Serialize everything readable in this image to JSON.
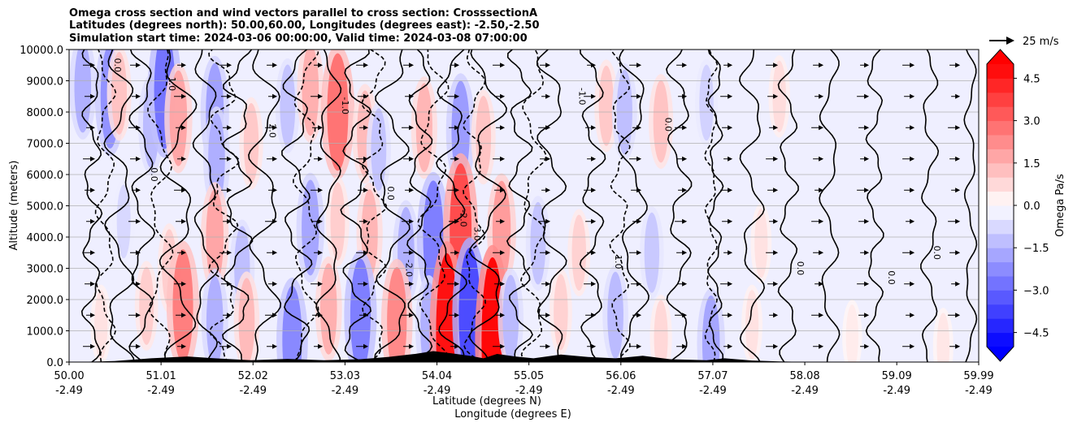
{
  "chart_data": {
    "type": "contour",
    "title_lines": [
      "Omega cross section and wind vectors parallel to cross section: CrosssectionA",
      "Latitudes (degrees north): 50.00,60.00, Longitudes (degrees east): -2.50,-2.50",
      "Simulation start time: 2024-03-06 00:00:00, Valid time: 2024-03-08 07:00:00"
    ],
    "ylabel": "Altitude (meters)",
    "xlabel": "Latitude (degrees N)",
    "xlabel2": "Longitude (degrees E)",
    "xlim": [
      50.0,
      59.99
    ],
    "ylim": [
      0,
      10000
    ],
    "yticks": [
      0,
      1000,
      2000,
      3000,
      4000,
      5000,
      6000,
      7000,
      8000,
      9000,
      10000
    ],
    "ytick_labels": [
      "0.0",
      "1000.0",
      "2000.0",
      "3000.0",
      "4000.0",
      "5000.0",
      "6000.0",
      "7000.0",
      "8000.0",
      "9000.0",
      "10000.0"
    ],
    "xticks": [
      50.0,
      51.01,
      52.02,
      53.03,
      54.04,
      55.05,
      56.06,
      57.07,
      58.08,
      59.09,
      59.99
    ],
    "xtick_lat_labels": [
      "50.00",
      "51.01",
      "52.02",
      "53.03",
      "54.04",
      "55.05",
      "56.06",
      "57.07",
      "58.08",
      "59.09",
      "59.99"
    ],
    "xtick_lon_labels": [
      "-2.49",
      "-2.49",
      "-2.49",
      "-2.49",
      "-2.49",
      "-2.49",
      "-2.49",
      "-2.49",
      "-2.49",
      "-2.49",
      "-2.49"
    ],
    "grid": "horizontal",
    "colorbar": {
      "label": "Omega Pa/s",
      "range": [
        -5.0,
        5.0
      ],
      "ticks": [
        -4.5,
        -3.0,
        -1.5,
        0.0,
        1.5,
        3.0,
        4.5
      ],
      "tick_labels": [
        "−4.5",
        "−3.0",
        "−1.5",
        "0.0",
        "1.5",
        "3.0",
        "4.5"
      ],
      "levels": 20,
      "cmap": "bwr",
      "extend": "both"
    },
    "quiver_key": {
      "value": 25,
      "label": "25 m/s"
    },
    "contour_labels": [
      "0.0",
      "1.0",
      "-1.0",
      "2.0",
      "-2.0",
      "3.0",
      "0.0",
      "0.0",
      "-1.0",
      "1.0",
      "0.0",
      "0.0",
      "-2.0",
      "0.0",
      "0.0"
    ],
    "cells": [
      {
        "lat": 50.15,
        "alt": 8800,
        "omega": -1.6
      },
      {
        "lat": 50.45,
        "alt": 8500,
        "omega": -2.2
      },
      {
        "lat": 50.55,
        "alt": 8600,
        "omega": 1.2
      },
      {
        "lat": 50.9,
        "alt": 7600,
        "omega": -1.4
      },
      {
        "lat": 51.05,
        "alt": 8700,
        "omega": -2.8
      },
      {
        "lat": 51.2,
        "alt": 7800,
        "omega": 1.8
      },
      {
        "lat": 51.6,
        "alt": 8000,
        "omega": -1.9
      },
      {
        "lat": 51.62,
        "alt": 6500,
        "omega": -1.6
      },
      {
        "lat": 52.0,
        "alt": 7000,
        "omega": 1.1
      },
      {
        "lat": 52.4,
        "alt": 8200,
        "omega": -1.2
      },
      {
        "lat": 52.65,
        "alt": 8700,
        "omega": 1.6
      },
      {
        "lat": 52.95,
        "alt": 8000,
        "omega": 2.8
      },
      {
        "lat": 53.25,
        "alt": 7300,
        "omega": 1.4
      },
      {
        "lat": 53.4,
        "alt": 6800,
        "omega": -1.2
      },
      {
        "lat": 53.9,
        "alt": 7500,
        "omega": 1.5
      },
      {
        "lat": 54.3,
        "alt": 7400,
        "omega": -2.0
      },
      {
        "lat": 54.55,
        "alt": 7200,
        "omega": 1.2
      },
      {
        "lat": 55.9,
        "alt": 8200,
        "omega": 1.1
      },
      {
        "lat": 56.1,
        "alt": 8000,
        "omega": -1.3
      },
      {
        "lat": 56.5,
        "alt": 7700,
        "omega": 1.2
      },
      {
        "lat": 57.0,
        "alt": 8300,
        "omega": -0.9
      },
      {
        "lat": 57.8,
        "alt": 8500,
        "omega": 0.7
      },
      {
        "lat": 50.6,
        "alt": 4500,
        "omega": -0.8
      },
      {
        "lat": 51.1,
        "alt": 3000,
        "omega": 1.0
      },
      {
        "lat": 51.6,
        "alt": 4000,
        "omega": 1.8
      },
      {
        "lat": 51.9,
        "alt": 3000,
        "omega": -1.3
      },
      {
        "lat": 52.65,
        "alt": 4300,
        "omega": -1.8
      },
      {
        "lat": 52.95,
        "alt": 4500,
        "omega": 1.0
      },
      {
        "lat": 53.3,
        "alt": 4100,
        "omega": 1.5
      },
      {
        "lat": 53.7,
        "alt": 3500,
        "omega": -1.6
      },
      {
        "lat": 54.0,
        "alt": 4000,
        "omega": -2.6
      },
      {
        "lat": 54.3,
        "alt": 4200,
        "omega": 3.6
      },
      {
        "lat": 54.75,
        "alt": 4200,
        "omega": 2.0
      },
      {
        "lat": 55.15,
        "alt": 3800,
        "omega": -1.2
      },
      {
        "lat": 55.6,
        "alt": 3500,
        "omega": 0.9
      },
      {
        "lat": 56.4,
        "alt": 3500,
        "omega": -1.1
      },
      {
        "lat": 57.6,
        "alt": 3800,
        "omega": 0.6
      },
      {
        "lat": 50.35,
        "alt": 1200,
        "omega": 0.6
      },
      {
        "lat": 50.85,
        "alt": 1800,
        "omega": 1.0
      },
      {
        "lat": 51.25,
        "alt": 1800,
        "omega": 2.6
      },
      {
        "lat": 51.6,
        "alt": 1300,
        "omega": -1.6
      },
      {
        "lat": 51.95,
        "alt": 1300,
        "omega": 1.4
      },
      {
        "lat": 52.45,
        "alt": 700,
        "omega": -2.4
      },
      {
        "lat": 52.85,
        "alt": 1700,
        "omega": 1.6
      },
      {
        "lat": 53.2,
        "alt": 1500,
        "omega": -2.6
      },
      {
        "lat": 53.6,
        "alt": 1300,
        "omega": 2.4
      },
      {
        "lat": 53.95,
        "alt": 1100,
        "omega": -1.6
      },
      {
        "lat": 54.15,
        "alt": 900,
        "omega": 4.8
      },
      {
        "lat": 54.4,
        "alt": 1500,
        "omega": -3.6
      },
      {
        "lat": 54.65,
        "alt": 700,
        "omega": 5.0
      },
      {
        "lat": 54.85,
        "alt": 1400,
        "omega": -1.4
      },
      {
        "lat": 55.4,
        "alt": 1600,
        "omega": 0.9
      },
      {
        "lat": 56.0,
        "alt": 1500,
        "omega": -1.4
      },
      {
        "lat": 56.5,
        "alt": 800,
        "omega": 0.8
      },
      {
        "lat": 57.05,
        "alt": 600,
        "omega": -1.8
      },
      {
        "lat": 57.5,
        "alt": 1200,
        "omega": 0.6
      },
      {
        "lat": 58.6,
        "alt": 800,
        "omega": 0.4
      },
      {
        "lat": 59.6,
        "alt": 500,
        "omega": 0.5
      }
    ],
    "solid_contours": [
      {
        "lat": 50.25,
        "amp": 0.08,
        "wave": 3.0
      },
      {
        "lat": 50.55,
        "amp": 0.12,
        "wave": 2.2
      },
      {
        "lat": 50.8,
        "amp": 0.1,
        "wave": 2.6
      },
      {
        "lat": 51.2,
        "amp": 0.15,
        "wave": 1.9
      },
      {
        "lat": 51.5,
        "amp": 0.1,
        "wave": 2.4
      },
      {
        "lat": 51.85,
        "amp": 0.12,
        "wave": 3.1
      },
      {
        "lat": 52.15,
        "amp": 0.13,
        "wave": 2.0
      },
      {
        "lat": 52.5,
        "amp": 0.12,
        "wave": 2.7
      },
      {
        "lat": 52.85,
        "amp": 0.1,
        "wave": 2.2
      },
      {
        "lat": 53.15,
        "amp": 0.12,
        "wave": 3.0
      },
      {
        "lat": 53.55,
        "amp": 0.14,
        "wave": 2.3
      },
      {
        "lat": 53.85,
        "amp": 0.1,
        "wave": 2.9
      },
      {
        "lat": 54.2,
        "amp": 0.12,
        "wave": 2.5
      },
      {
        "lat": 54.6,
        "amp": 0.15,
        "wave": 2.1
      },
      {
        "lat": 54.95,
        "amp": 0.1,
        "wave": 3.2
      },
      {
        "lat": 55.3,
        "amp": 0.12,
        "wave": 2.4
      },
      {
        "lat": 55.75,
        "amp": 0.1,
        "wave": 2.8
      },
      {
        "lat": 56.2,
        "amp": 0.12,
        "wave": 2.0
      },
      {
        "lat": 56.7,
        "amp": 0.1,
        "wave": 2.6
      },
      {
        "lat": 57.1,
        "amp": 0.06,
        "wave": 3.5
      },
      {
        "lat": 57.5,
        "amp": 0.1,
        "wave": 2.3
      },
      {
        "lat": 57.9,
        "amp": 0.08,
        "wave": 2.9
      },
      {
        "lat": 58.35,
        "amp": 0.08,
        "wave": 2.2
      },
      {
        "lat": 58.85,
        "amp": 0.07,
        "wave": 3.1
      },
      {
        "lat": 59.45,
        "amp": 0.07,
        "wave": 2.6
      },
      {
        "lat": 59.9,
        "amp": 0.05,
        "wave": 2.4
      }
    ],
    "dashed_contours": [
      {
        "lat": 50.4,
        "amp": 0.08,
        "wave": 2.5
      },
      {
        "lat": 51.0,
        "amp": 0.1,
        "wave": 2.1
      },
      {
        "lat": 51.7,
        "amp": 0.12,
        "wave": 2.8
      },
      {
        "lat": 52.6,
        "amp": 0.1,
        "wave": 2.3
      },
      {
        "lat": 53.35,
        "amp": 0.1,
        "wave": 2.9
      },
      {
        "lat": 54.0,
        "amp": 0.12,
        "wave": 2.2
      },
      {
        "lat": 54.45,
        "amp": 0.09,
        "wave": 2.7
      },
      {
        "lat": 55.1,
        "amp": 0.1,
        "wave": 2.4
      },
      {
        "lat": 56.05,
        "amp": 0.08,
        "wave": 3.0
      },
      {
        "lat": 57.05,
        "amp": 0.05,
        "wave": 3.3
      }
    ],
    "terrain": [
      {
        "lat": 50.0,
        "alt": 0
      },
      {
        "lat": 50.5,
        "alt": 30
      },
      {
        "lat": 50.9,
        "alt": 120
      },
      {
        "lat": 51.3,
        "alt": 180
      },
      {
        "lat": 51.6,
        "alt": 120
      },
      {
        "lat": 52.0,
        "alt": 60
      },
      {
        "lat": 52.4,
        "alt": 100
      },
      {
        "lat": 52.8,
        "alt": 60
      },
      {
        "lat": 53.2,
        "alt": 90
      },
      {
        "lat": 53.5,
        "alt": 160
      },
      {
        "lat": 53.8,
        "alt": 260
      },
      {
        "lat": 54.0,
        "alt": 350
      },
      {
        "lat": 54.2,
        "alt": 280
      },
      {
        "lat": 54.4,
        "alt": 200
      },
      {
        "lat": 54.55,
        "alt": 120
      },
      {
        "lat": 54.7,
        "alt": 260
      },
      {
        "lat": 54.9,
        "alt": 180
      },
      {
        "lat": 55.1,
        "alt": 120
      },
      {
        "lat": 55.4,
        "alt": 240
      },
      {
        "lat": 55.7,
        "alt": 160
      },
      {
        "lat": 56.0,
        "alt": 120
      },
      {
        "lat": 56.3,
        "alt": 200
      },
      {
        "lat": 56.6,
        "alt": 90
      },
      {
        "lat": 57.0,
        "alt": 60
      },
      {
        "lat": 57.2,
        "alt": 120
      },
      {
        "lat": 57.5,
        "alt": 50
      },
      {
        "lat": 57.8,
        "alt": 20
      },
      {
        "lat": 58.2,
        "alt": 0
      },
      {
        "lat": 59.99,
        "alt": 0
      }
    ]
  }
}
